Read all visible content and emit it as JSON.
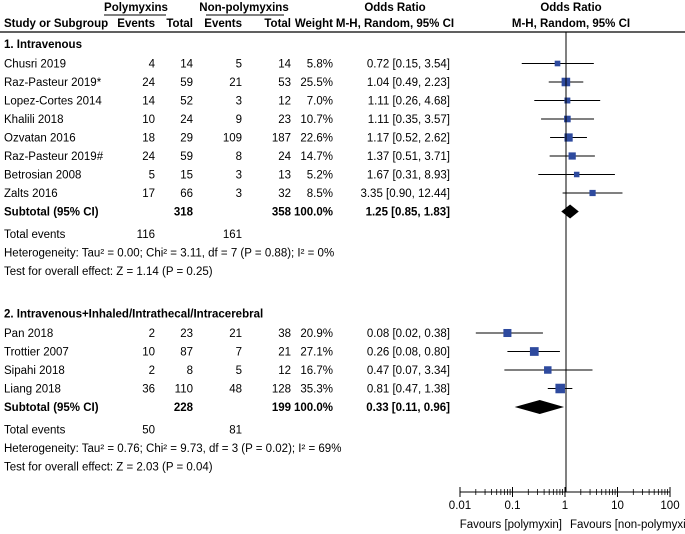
{
  "header": {
    "group1": "Polymyxins",
    "group2": "Non-polymyxins",
    "weight": "Weight",
    "or_text": "Odds Ratio",
    "or_method": "M-H, Random, 95% CI",
    "plot_title": "Odds Ratio",
    "plot_method": "M-H, Random, 95% CI",
    "study": "Study or Subgroup",
    "events1": "Events",
    "total1": "Total",
    "events2": "Events",
    "total2": "Total"
  },
  "chart_data": {
    "type": "forest",
    "scale": "log",
    "xlim": [
      0.01,
      100
    ],
    "ticks": [
      "0.01",
      "0.1",
      "1",
      "10",
      "100"
    ],
    "xlabel_left": "Favours [polymyxin]",
    "xlabel_right": "Favours [non-polymyxin]",
    "marker_color": "#2e4a9e",
    "groups": [
      {
        "title": "1. Intravenous",
        "studies": [
          {
            "name": "Chusri 2019",
            "e1": "4",
            "t1": "14",
            "e2": "5",
            "t2": "14",
            "weight": "5.8%",
            "or_text": "0.72 [0.15, 3.54]",
            "or": 0.72,
            "lo": 0.15,
            "hi": 3.54,
            "w": 5.8
          },
          {
            "name": "Raz-Pasteur 2019*",
            "e1": "24",
            "t1": "59",
            "e2": "21",
            "t2": "53",
            "weight": "25.5%",
            "or_text": "1.04 [0.49, 2.23]",
            "or": 1.04,
            "lo": 0.49,
            "hi": 2.23,
            "w": 25.5
          },
          {
            "name": "Lopez-Cortes 2014",
            "e1": "14",
            "t1": "52",
            "e2": "3",
            "t2": "12",
            "weight": "7.0%",
            "or_text": "1.11 [0.26, 4.68]",
            "or": 1.11,
            "lo": 0.26,
            "hi": 4.68,
            "w": 7.0
          },
          {
            "name": "Khalili 2018",
            "e1": "10",
            "t1": "24",
            "e2": "9",
            "t2": "23",
            "weight": "10.7%",
            "or_text": "1.11 [0.35, 3.57]",
            "or": 1.11,
            "lo": 0.35,
            "hi": 3.57,
            "w": 10.7
          },
          {
            "name": "Ozvatan 2016",
            "e1": "18",
            "t1": "29",
            "e2": "109",
            "t2": "187",
            "weight": "22.6%",
            "or_text": "1.17 [0.52, 2.62]",
            "or": 1.17,
            "lo": 0.52,
            "hi": 2.62,
            "w": 22.6
          },
          {
            "name": "Raz-Pasteur 2019#",
            "e1": "24",
            "t1": "59",
            "e2": "8",
            "t2": "24",
            "weight": "14.7%",
            "or_text": "1.37 [0.51, 3.71]",
            "or": 1.37,
            "lo": 0.51,
            "hi": 3.71,
            "w": 14.7
          },
          {
            "name": "Betrosian 2008",
            "e1": "5",
            "t1": "15",
            "e2": "3",
            "t2": "13",
            "weight": "5.2%",
            "or_text": "1.67 [0.31, 8.93]",
            "or": 1.67,
            "lo": 0.31,
            "hi": 8.93,
            "w": 5.2
          },
          {
            "name": "Zalts 2016",
            "e1": "17",
            "t1": "66",
            "e2": "3",
            "t2": "32",
            "weight": "8.5%",
            "or_text": "3.35 [0.90, 12.44]",
            "or": 3.35,
            "lo": 0.9,
            "hi": 12.44,
            "w": 8.5
          }
        ],
        "subtotal": {
          "label": "Subtotal (95% CI)",
          "t1": "318",
          "t2": "358",
          "weight": "100.0%",
          "or_text": "1.25 [0.85, 1.83]",
          "or": 1.25,
          "lo": 0.85,
          "hi": 1.83
        },
        "total_events": {
          "label": "Total events",
          "e1": "116",
          "e2": "161"
        },
        "heterogeneity": "Heterogeneity: Tau² = 0.00; Chi² = 3.11, df = 7 (P = 0.88); I² = 0%",
        "overall_effect": "Test for overall effect: Z = 1.14 (P = 0.25)"
      },
      {
        "title": "2. Intravenous+Inhaled/Intrathecal/Intracerebral",
        "studies": [
          {
            "name": "Pan 2018",
            "e1": "2",
            "t1": "23",
            "e2": "21",
            "t2": "38",
            "weight": "20.9%",
            "or_text": "0.08 [0.02, 0.38]",
            "or": 0.08,
            "lo": 0.02,
            "hi": 0.38,
            "w": 20.9
          },
          {
            "name": "Trottier 2007",
            "e1": "10",
            "t1": "87",
            "e2": "7",
            "t2": "21",
            "weight": "27.1%",
            "or_text": "0.26 [0.08, 0.80]",
            "or": 0.26,
            "lo": 0.08,
            "hi": 0.8,
            "w": 27.1
          },
          {
            "name": "Sipahi 2018",
            "e1": "2",
            "t1": "8",
            "e2": "5",
            "t2": "12",
            "weight": "16.7%",
            "or_text": "0.47 [0.07, 3.34]",
            "or": 0.47,
            "lo": 0.07,
            "hi": 3.34,
            "w": 16.7
          },
          {
            "name": "Liang 2018",
            "e1": "36",
            "t1": "110",
            "e2": "48",
            "t2": "128",
            "weight": "35.3%",
            "or_text": "0.81 [0.47, 1.38]",
            "or": 0.81,
            "lo": 0.47,
            "hi": 1.38,
            "w": 35.3
          }
        ],
        "subtotal": {
          "label": "Subtotal (95% CI)",
          "t1": "228",
          "t2": "199",
          "weight": "100.0%",
          "or_text": "0.33 [0.11, 0.96]",
          "or": 0.33,
          "lo": 0.11,
          "hi": 0.96
        },
        "total_events": {
          "label": "Total events",
          "e1": "50",
          "e2": "81"
        },
        "heterogeneity": "Heterogeneity: Tau² = 0.76; Chi² = 9.73, df = 3 (P = 0.02); I² = 69%",
        "overall_effect": "Test for overall effect: Z = 2.03 (P = 0.04)"
      }
    ]
  }
}
